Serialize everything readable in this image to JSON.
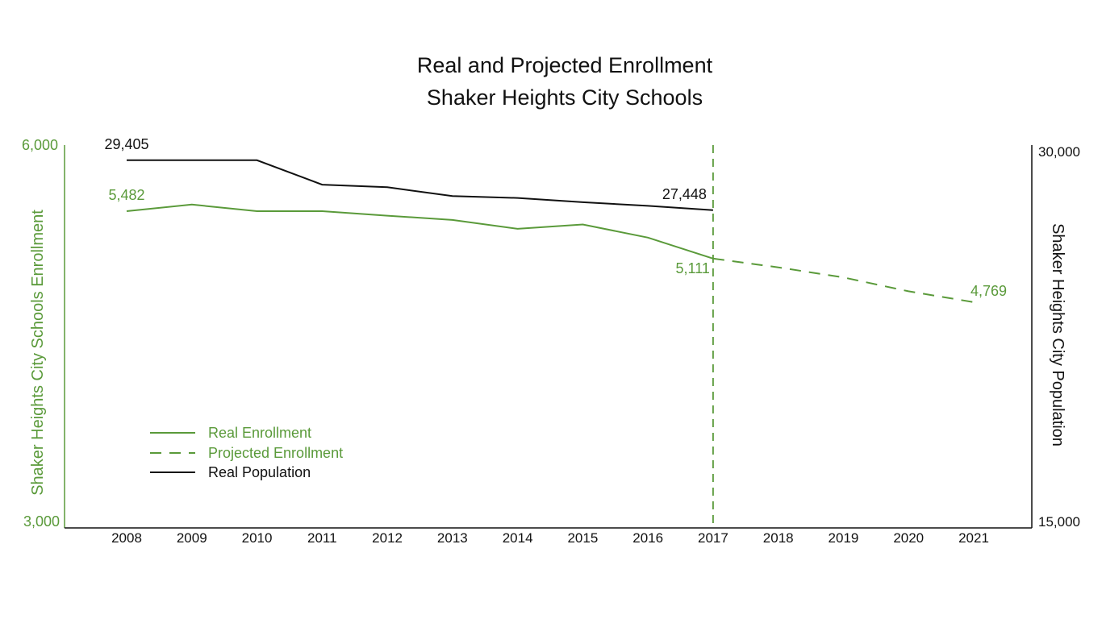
{
  "chart_data": {
    "type": "line",
    "title": "Real and Projected Enrollment",
    "subtitle": "Shaker Heights City Schools",
    "ylabel": "Shaker Heights City Schools  Enrollment",
    "y2label": "Shaker Heights City Population",
    "categories": [
      "2008",
      "2009",
      "2010",
      "2011",
      "2012",
      "2013",
      "2014",
      "2015",
      "2016",
      "2017",
      "2018",
      "2019",
      "2020",
      "2021"
    ],
    "ylim": [
      3000,
      6000
    ],
    "y2lim": [
      15000,
      30000
    ],
    "yticks": [
      "6,000",
      "3,000"
    ],
    "y2ticks": [
      "30,000",
      "15,000"
    ],
    "grid": false,
    "legend_position": "bottom-left",
    "colors": {
      "enrollment": "#5a9a3a",
      "population": "#111111"
    },
    "divider": {
      "x": "2017",
      "style": "dashed"
    },
    "series": [
      {
        "name": "Real Enrollment",
        "axis": "left",
        "style": "solid",
        "color": "#5a9a3a",
        "x": [
          "2008",
          "2009",
          "2010",
          "2011",
          "2012",
          "2013",
          "2014",
          "2015",
          "2016",
          "2017"
        ],
        "values": [
          5482,
          5534,
          5482,
          5482,
          5447,
          5413,
          5344,
          5378,
          5275,
          5111
        ]
      },
      {
        "name": "Projected Enrollment",
        "axis": "left",
        "style": "dashed",
        "color": "#5a9a3a",
        "x": [
          "2017",
          "2018",
          "2019",
          "2020",
          "2021"
        ],
        "values": [
          5111,
          5042,
          4963,
          4854,
          4769
        ]
      },
      {
        "name": "Real Population",
        "axis": "right",
        "style": "solid",
        "color": "#111111",
        "x": [
          "2008",
          "2009",
          "2010",
          "2011",
          "2012",
          "2013",
          "2014",
          "2015",
          "2016",
          "2017"
        ],
        "values": [
          29405,
          29405,
          29405,
          28450,
          28350,
          28000,
          27930,
          27760,
          27620,
          27448
        ]
      }
    ],
    "data_labels": [
      {
        "text": "29,405",
        "series": "Real Population",
        "x": "2008",
        "color": "#111111",
        "pos": "above"
      },
      {
        "text": "27,448",
        "series": "Real Population",
        "x": "2017",
        "color": "#111111",
        "pos": "above-left"
      },
      {
        "text": "5,482",
        "series": "Real Enrollment",
        "x": "2008",
        "color": "#5a9a3a",
        "pos": "above"
      },
      {
        "text": "5,111",
        "series": "Real Enrollment",
        "x": "2017",
        "color": "#5a9a3a",
        "pos": "below-left"
      },
      {
        "text": "4,769",
        "series": "Projected Enrollment",
        "x": "2021",
        "color": "#5a9a3a",
        "pos": "above-right"
      }
    ]
  }
}
